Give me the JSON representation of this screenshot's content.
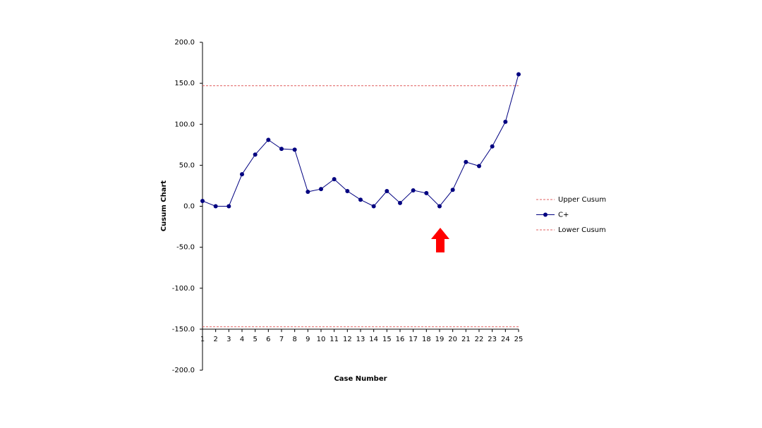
{
  "chart_data": {
    "type": "line",
    "y_label": "Cusum Chart",
    "x_label": "Case Number",
    "categories": [
      "1",
      "2",
      "3",
      "4",
      "5",
      "6",
      "7",
      "8",
      "9",
      "10",
      "11",
      "12",
      "13",
      "14",
      "15",
      "16",
      "17",
      "18",
      "19",
      "20",
      "21",
      "22",
      "23",
      "24",
      "25"
    ],
    "series": [
      {
        "name": "Upper Cusum",
        "color": "#e06060",
        "dashed": true,
        "marker": false,
        "values": [
          147,
          147,
          147,
          147,
          147,
          147,
          147,
          147,
          147,
          147,
          147,
          147,
          147,
          147,
          147,
          147,
          147,
          147,
          147,
          147,
          147,
          147,
          147,
          147,
          147
        ]
      },
      {
        "name": "C+",
        "color": "#000080",
        "dashed": false,
        "marker": true,
        "values": [
          6.5,
          0,
          0,
          39,
          63,
          81,
          70,
          69,
          17.6,
          21,
          33,
          18.5,
          8,
          0,
          18.5,
          4,
          19.4,
          16,
          0,
          20,
          54,
          49,
          73,
          103,
          161
        ]
      },
      {
        "name": "Lower Cusum",
        "color": "#e06060",
        "dashed": true,
        "marker": false,
        "values": [
          -147,
          -147,
          -147,
          -147,
          -147,
          -147,
          -147,
          -147,
          -147,
          -147,
          -147,
          -147,
          -147,
          -147,
          -147,
          -147,
          -147,
          -147,
          -147,
          -147,
          -147,
          -147,
          -147,
          -147,
          -147
        ]
      }
    ],
    "ylim": [
      -200,
      200
    ],
    "yticks": [
      {
        "value": -200,
        "label": "-200.0"
      },
      {
        "value": -150,
        "label": "-150.0"
      },
      {
        "value": -100,
        "label": "-100.0"
      },
      {
        "value": -50,
        "label": "-50.0"
      },
      {
        "value": 0,
        "label": "0.0"
      },
      {
        "value": 50,
        "label": "50.0"
      },
      {
        "value": 100,
        "label": "100.0"
      },
      {
        "value": 150,
        "label": "150.0"
      },
      {
        "value": 200,
        "label": "200.0"
      }
    ],
    "x_axis_crosses": -150,
    "legend": "right"
  }
}
